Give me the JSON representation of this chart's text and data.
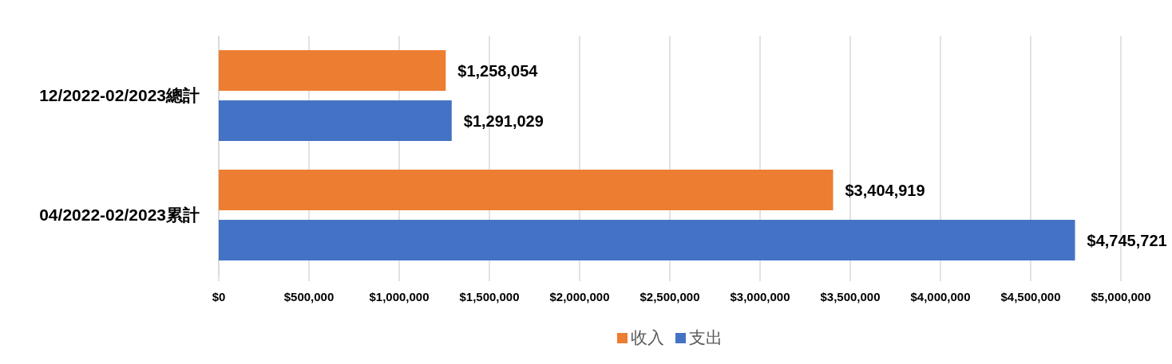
{
  "chart_data": {
    "type": "bar",
    "orientation": "horizontal",
    "categories": [
      "12/2022-02/2023總計",
      "04/2022-02/2023累計"
    ],
    "series": [
      {
        "name": "收入",
        "color": "#ed7d31",
        "values": [
          1258054,
          3404919
        ],
        "value_labels": [
          "$1,258,054",
          "$3,404,919"
        ]
      },
      {
        "name": "支出",
        "color": "#4472c4",
        "values": [
          1291029,
          4745721
        ],
        "value_labels": [
          "$1,291,029",
          "$4,745,721"
        ]
      }
    ],
    "xlim": [
      0,
      5000000
    ],
    "xticks": [
      {
        "value": 0,
        "label": "$0"
      },
      {
        "value": 500000,
        "label": "$500,000"
      },
      {
        "value": 1000000,
        "label": "$1,000,000"
      },
      {
        "value": 1500000,
        "label": "$1,500,000"
      },
      {
        "value": 2000000,
        "label": "$2,000,000"
      },
      {
        "value": 2500000,
        "label": "$2,500,000"
      },
      {
        "value": 3000000,
        "label": "$3,000,000"
      },
      {
        "value": 3500000,
        "label": "$3,500,000"
      },
      {
        "value": 4000000,
        "label": "$4,000,000"
      },
      {
        "value": 4500000,
        "label": "$4,500,000"
      },
      {
        "value": 5000000,
        "label": "$5,000,000"
      }
    ],
    "grid": "x",
    "legend": "bottom"
  }
}
